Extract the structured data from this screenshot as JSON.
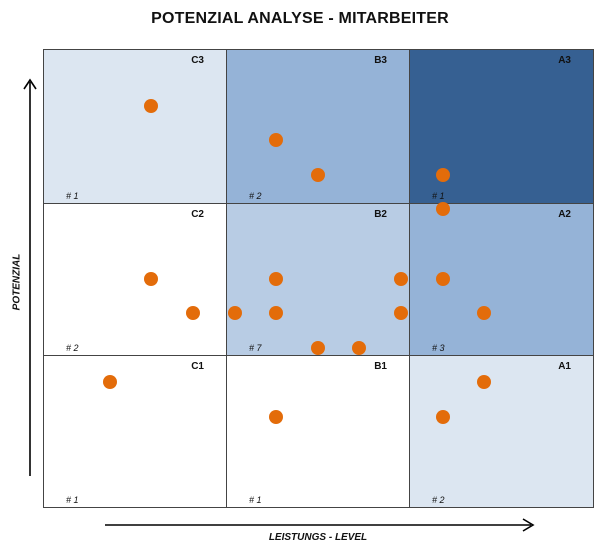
{
  "title": "POTENZIAL ANALYSE - MITARBEITER",
  "axes": {
    "y_label": "POTENZIAL",
    "x_label": "LEISTUNGS - LEVEL"
  },
  "colors": {
    "dot": "#e36c0a",
    "lightest": "#dce6f1",
    "light": "#b8cce4",
    "medium": "#95b3d7",
    "dark": "#366092",
    "white": "#ffffff"
  },
  "cells": [
    {
      "code": "C3",
      "count": "# 1",
      "color": "#dce6f1",
      "col": 0,
      "row": 0
    },
    {
      "code": "B3",
      "count": "# 2",
      "color": "#95b3d7",
      "col": 1,
      "row": 0
    },
    {
      "code": "A3",
      "count": "# 1",
      "color": "#366092",
      "col": 2,
      "row": 0
    },
    {
      "code": "C2",
      "count": "# 2",
      "color": "#ffffff",
      "col": 0,
      "row": 1
    },
    {
      "code": "B2",
      "count": "# 7",
      "color": "#b8cce4",
      "col": 1,
      "row": 1
    },
    {
      "code": "A2",
      "count": "# 3",
      "color": "#95b3d7",
      "col": 2,
      "row": 1
    },
    {
      "code": "C1",
      "count": "# 1",
      "color": "#ffffff",
      "col": 0,
      "row": 2
    },
    {
      "code": "B1",
      "count": "# 1",
      "color": "#ffffff",
      "col": 1,
      "row": 2
    },
    {
      "code": "A1",
      "count": "# 2",
      "color": "#dce6f1",
      "col": 2,
      "row": 2
    }
  ]
}
